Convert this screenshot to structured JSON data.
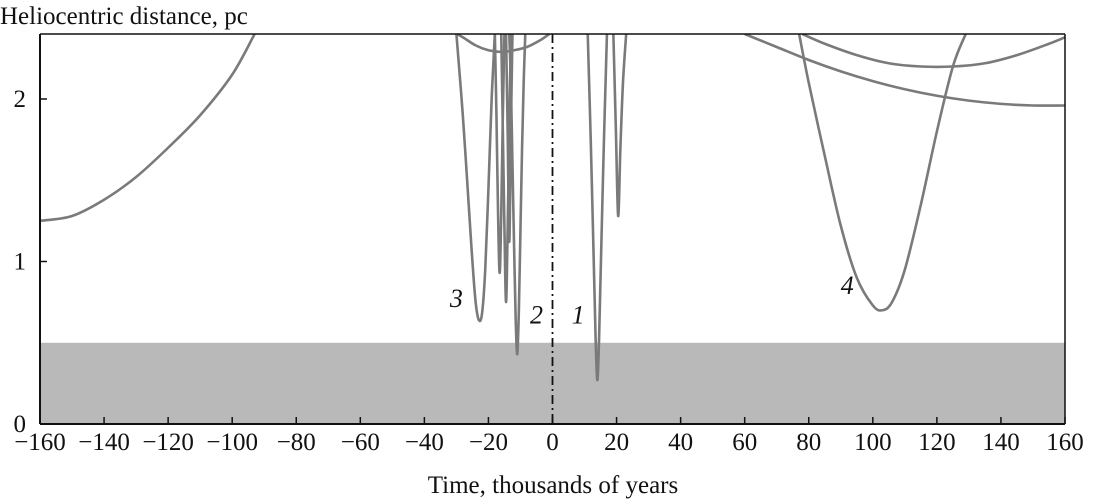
{
  "chart_data": {
    "type": "line",
    "ylabel": "Heliocentric distance, pc",
    "xlabel": "Time, thousands of years",
    "xlim": [
      -160,
      160
    ],
    "ylim": [
      0,
      2.4
    ],
    "x_ticks": [
      -160,
      -140,
      -120,
      -100,
      -80,
      -60,
      -40,
      -20,
      0,
      20,
      40,
      60,
      80,
      100,
      120,
      140,
      160
    ],
    "x_tick_labels": [
      "−160",
      "−140",
      "−120",
      "−100",
      "−80",
      "−60",
      "−40",
      "−20",
      "0",
      "20",
      "40",
      "60",
      "80",
      "100",
      "120",
      "140",
      "160"
    ],
    "y_ticks": [
      0,
      1,
      2
    ],
    "y_tick_labels": [
      "0",
      "1",
      "2"
    ],
    "shaded_band": {
      "y_from": 0,
      "y_to": 0.5,
      "color": "#b9b9b9"
    },
    "reference_line": {
      "x": 0,
      "style": "dash-dot",
      "color": "#111111"
    },
    "line_color": "#7a7a7a",
    "grid": false,
    "annotations": [
      {
        "text": "1",
        "x": 8,
        "y": 0.62
      },
      {
        "text": "2",
        "x": -5,
        "y": 0.62
      },
      {
        "text": "3",
        "x": -30,
        "y": 0.72
      },
      {
        "text": "4",
        "x": 92,
        "y": 0.8
      }
    ],
    "series": [
      {
        "x": [
          -160,
          -150,
          -140,
          -130,
          -120,
          -110,
          -100,
          -93
        ],
        "y": [
          1.25,
          1.28,
          1.38,
          1.52,
          1.7,
          1.9,
          2.15,
          2.4
        ]
      },
      {
        "x": [
          -30,
          -28,
          -26,
          -25,
          -24,
          -23,
          -22,
          -21,
          -20,
          -19,
          -18
        ],
        "y": [
          2.4,
          1.9,
          1.3,
          1.0,
          0.75,
          0.64,
          0.68,
          0.95,
          1.45,
          2.0,
          2.4
        ]
      },
      {
        "x": [
          -18,
          -17.5,
          -17,
          -16.5,
          -16,
          -15.5,
          -15
        ],
        "y": [
          2.4,
          1.9,
          1.3,
          0.93,
          1.3,
          1.9,
          2.4
        ]
      },
      {
        "x": [
          -16,
          -15.5,
          -15,
          -14.5,
          -14,
          -13.5,
          -13
        ],
        "y": [
          2.4,
          1.8,
          1.2,
          0.75,
          1.2,
          1.8,
          2.4
        ]
      },
      {
        "x": [
          -14.5,
          -14,
          -13.5,
          -13,
          -12.5
        ],
        "y": [
          2.4,
          1.8,
          1.12,
          1.8,
          2.4
        ]
      },
      {
        "x": [
          -13.5,
          -13,
          -12.5,
          -12,
          -11.5,
          -11,
          -10.5,
          -10,
          -9.5,
          -9,
          -8.5
        ],
        "y": [
          2.4,
          2.1,
          1.6,
          1.1,
          0.65,
          0.43,
          0.7,
          1.2,
          1.7,
          2.1,
          2.4
        ]
      },
      {
        "x": [
          -30,
          -28,
          -24,
          -20,
          -16,
          -12,
          -8,
          -4,
          -1
        ],
        "y": [
          2.4,
          2.38,
          2.33,
          2.3,
          2.29,
          2.3,
          2.32,
          2.36,
          2.4
        ]
      },
      {
        "x": [
          11,
          12,
          13,
          13.5,
          14,
          14.5,
          15,
          16,
          17
        ],
        "y": [
          2.4,
          1.7,
          0.9,
          0.5,
          0.27,
          0.5,
          0.9,
          1.7,
          2.4
        ]
      },
      {
        "x": [
          19,
          19.8,
          20.5,
          21.2,
          22,
          23
        ],
        "y": [
          2.4,
          1.8,
          1.28,
          1.7,
          2.1,
          2.4
        ]
      },
      {
        "x": [
          77,
          80,
          85,
          90,
          95,
          100,
          103,
          106,
          110,
          115,
          120,
          125,
          129
        ],
        "y": [
          2.4,
          2.1,
          1.65,
          1.22,
          0.9,
          0.73,
          0.7,
          0.75,
          0.95,
          1.35,
          1.8,
          2.2,
          2.4
        ]
      },
      {
        "x": [
          60,
          70,
          80,
          90,
          100,
          110,
          120,
          130,
          140,
          150,
          160
        ],
        "y": [
          2.4,
          2.32,
          2.24,
          2.17,
          2.11,
          2.06,
          2.02,
          1.99,
          1.97,
          1.96,
          1.96
        ]
      },
      {
        "x": [
          78,
          85,
          95,
          105,
          115,
          125,
          135,
          145,
          155,
          160
        ],
        "y": [
          2.4,
          2.34,
          2.27,
          2.22,
          2.2,
          2.2,
          2.22,
          2.27,
          2.34,
          2.38
        ]
      }
    ]
  }
}
